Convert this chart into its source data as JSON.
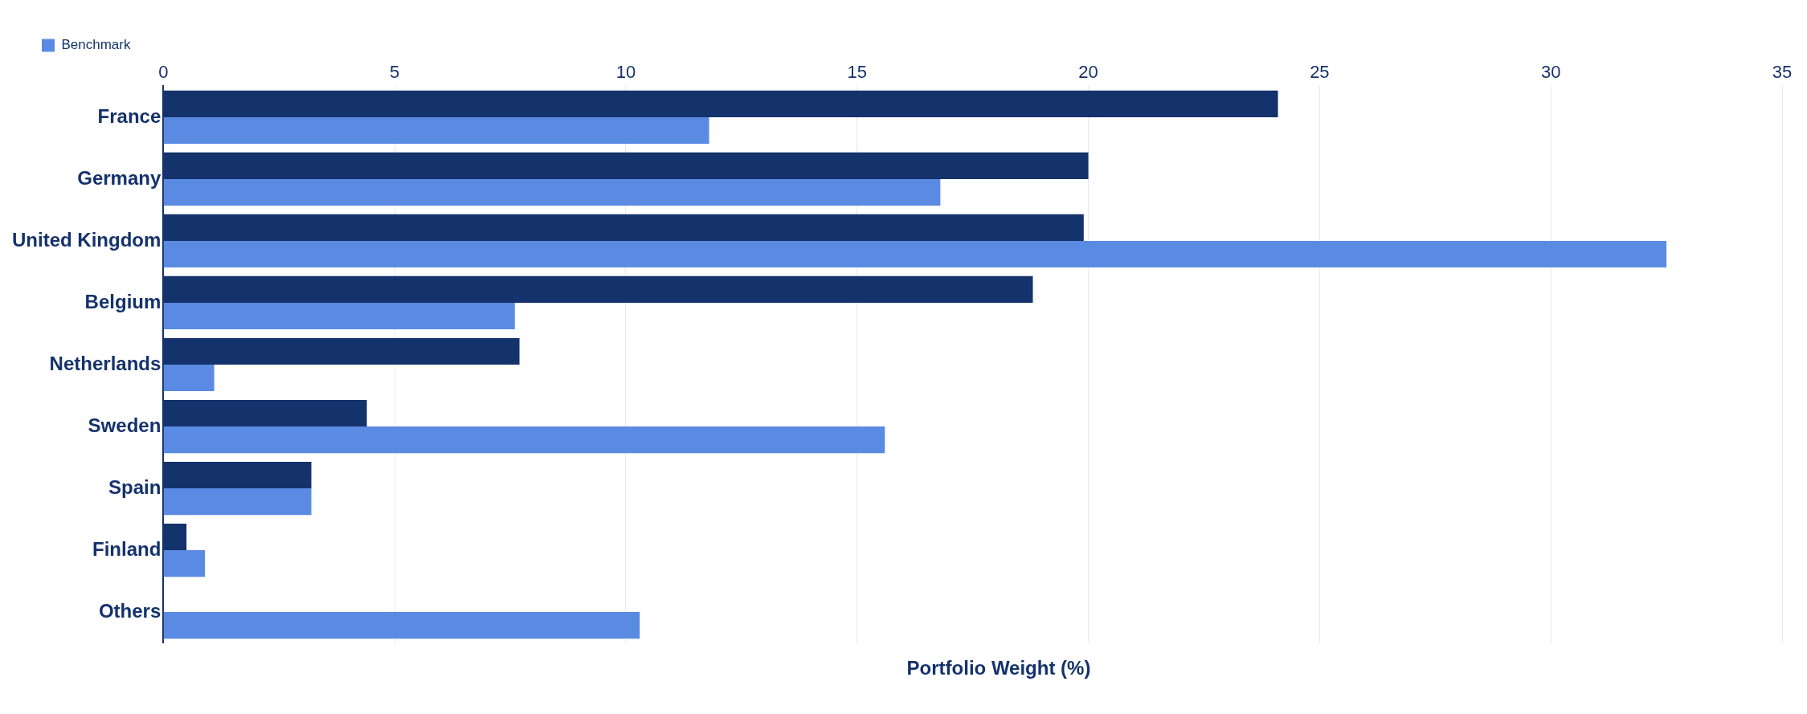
{
  "chart_data": {
    "type": "bar",
    "orientation": "horizontal",
    "xlabel": "Portfolio Weight (%)",
    "categories": [
      "France",
      "Germany",
      "United Kingdom",
      "Belgium",
      "Netherlands",
      "Sweden",
      "Spain",
      "Finland",
      "Others"
    ],
    "series": [
      {
        "color": "#14326b",
        "values": [
          24.1,
          20.0,
          19.9,
          18.8,
          7.7,
          4.4,
          3.2,
          0.5,
          null
        ]
      },
      {
        "name": "Benchmark",
        "color": "#5b8ae2",
        "values": [
          11.8,
          16.8,
          32.5,
          7.6,
          1.1,
          15.6,
          3.2,
          0.9,
          10.3
        ]
      }
    ],
    "xlim": [
      0,
      35
    ],
    "xticks": [
      0,
      5,
      10,
      15,
      20,
      25,
      30,
      35
    ],
    "grid": "x",
    "legend": "top left"
  }
}
